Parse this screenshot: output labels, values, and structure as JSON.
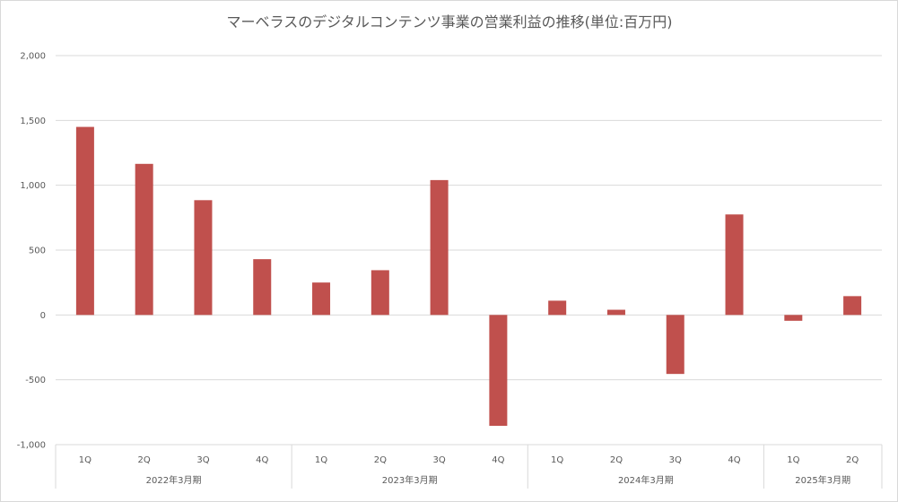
{
  "chart_data": {
    "type": "bar",
    "title": "マーベラスのデジタルコンテンツ事業の営業利益の推移(単位:百万円)",
    "xlabel": "",
    "ylabel": "",
    "ylim": [
      -1000,
      2000
    ],
    "yticks": [
      2000,
      1500,
      1000,
      500,
      0,
      -500,
      -1000
    ],
    "ytick_labels": [
      "2,000",
      "1,500",
      "1,000",
      "500",
      "0",
      "-500",
      "-1,000"
    ],
    "grid": true,
    "legend": "none",
    "bar_color": "#c0504d",
    "categories": [
      "1Q",
      "2Q",
      "3Q",
      "4Q",
      "1Q",
      "2Q",
      "3Q",
      "4Q",
      "1Q",
      "2Q",
      "3Q",
      "4Q",
      "1Q",
      "2Q"
    ],
    "groups": [
      {
        "label": "2022年3月期",
        "count": 4
      },
      {
        "label": "2023年3月期",
        "count": 4
      },
      {
        "label": "2024年3月期",
        "count": 4
      },
      {
        "label": "2025年3月期",
        "count": 2
      }
    ],
    "values": [
      1450,
      1165,
      885,
      430,
      250,
      345,
      1040,
      -855,
      110,
      40,
      -455,
      775,
      -45,
      145
    ]
  }
}
